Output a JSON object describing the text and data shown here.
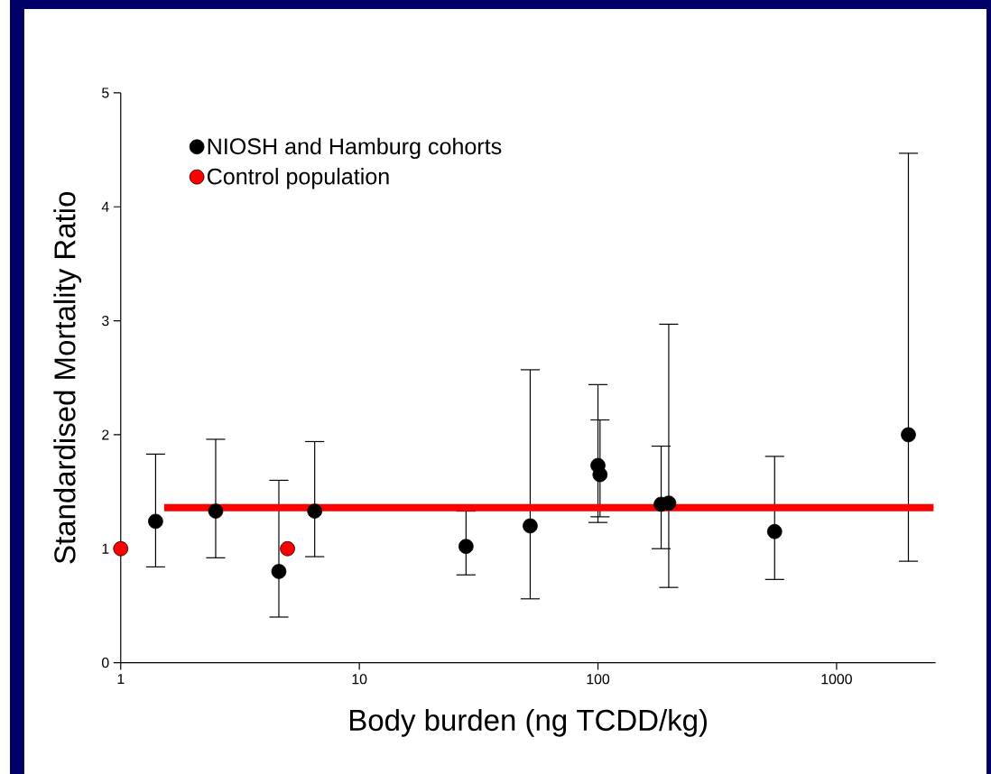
{
  "chart_data": {
    "type": "scatter",
    "xlabel": "Body burden (ng TCDD/kg)",
    "ylabel": "Standardised Mortality Ratio",
    "log": "x",
    "xlim": [
      1,
      2600
    ],
    "xticks": [
      1,
      10,
      100,
      1000
    ],
    "ylim": [
      0,
      5
    ],
    "yticks": [
      0,
      1,
      2,
      3,
      4,
      5
    ],
    "grid": false,
    "legend": "top left",
    "marker": "circle",
    "series": [
      {
        "name": "NIOSH and Hamburg cohorts",
        "color": "#000000",
        "x": [
          1.4,
          2.5,
          4.6,
          6.5,
          28,
          52,
          100,
          102,
          184,
          198,
          550,
          2000
        ],
        "values": [
          1.24,
          1.33,
          0.8,
          1.33,
          1.02,
          1.2,
          1.73,
          1.65,
          1.39,
          1.4,
          1.15,
          2.0
        ],
        "errors": [
          [
            0.84,
            1.83
          ],
          [
            0.92,
            1.96
          ],
          [
            0.4,
            1.6
          ],
          [
            0.93,
            1.94
          ],
          [
            0.77,
            1.33
          ],
          [
            0.56,
            2.57
          ],
          [
            1.23,
            2.44
          ],
          [
            1.28,
            2.13
          ],
          [
            1.0,
            1.9
          ],
          [
            0.66,
            2.97
          ],
          [
            0.73,
            1.81
          ],
          [
            0.89,
            4.47
          ]
        ]
      },
      {
        "name": "Control population",
        "color": "#ff0000",
        "x": [
          1,
          5
        ],
        "values": [
          1.0,
          1.0
        ]
      },
      {
        "type": "line",
        "color": "#ff0000",
        "marker": "none",
        "line_style": "solid",
        "x": [
          1.52,
          2550
        ],
        "values": [
          1.36,
          1.36
        ]
      }
    ]
  }
}
